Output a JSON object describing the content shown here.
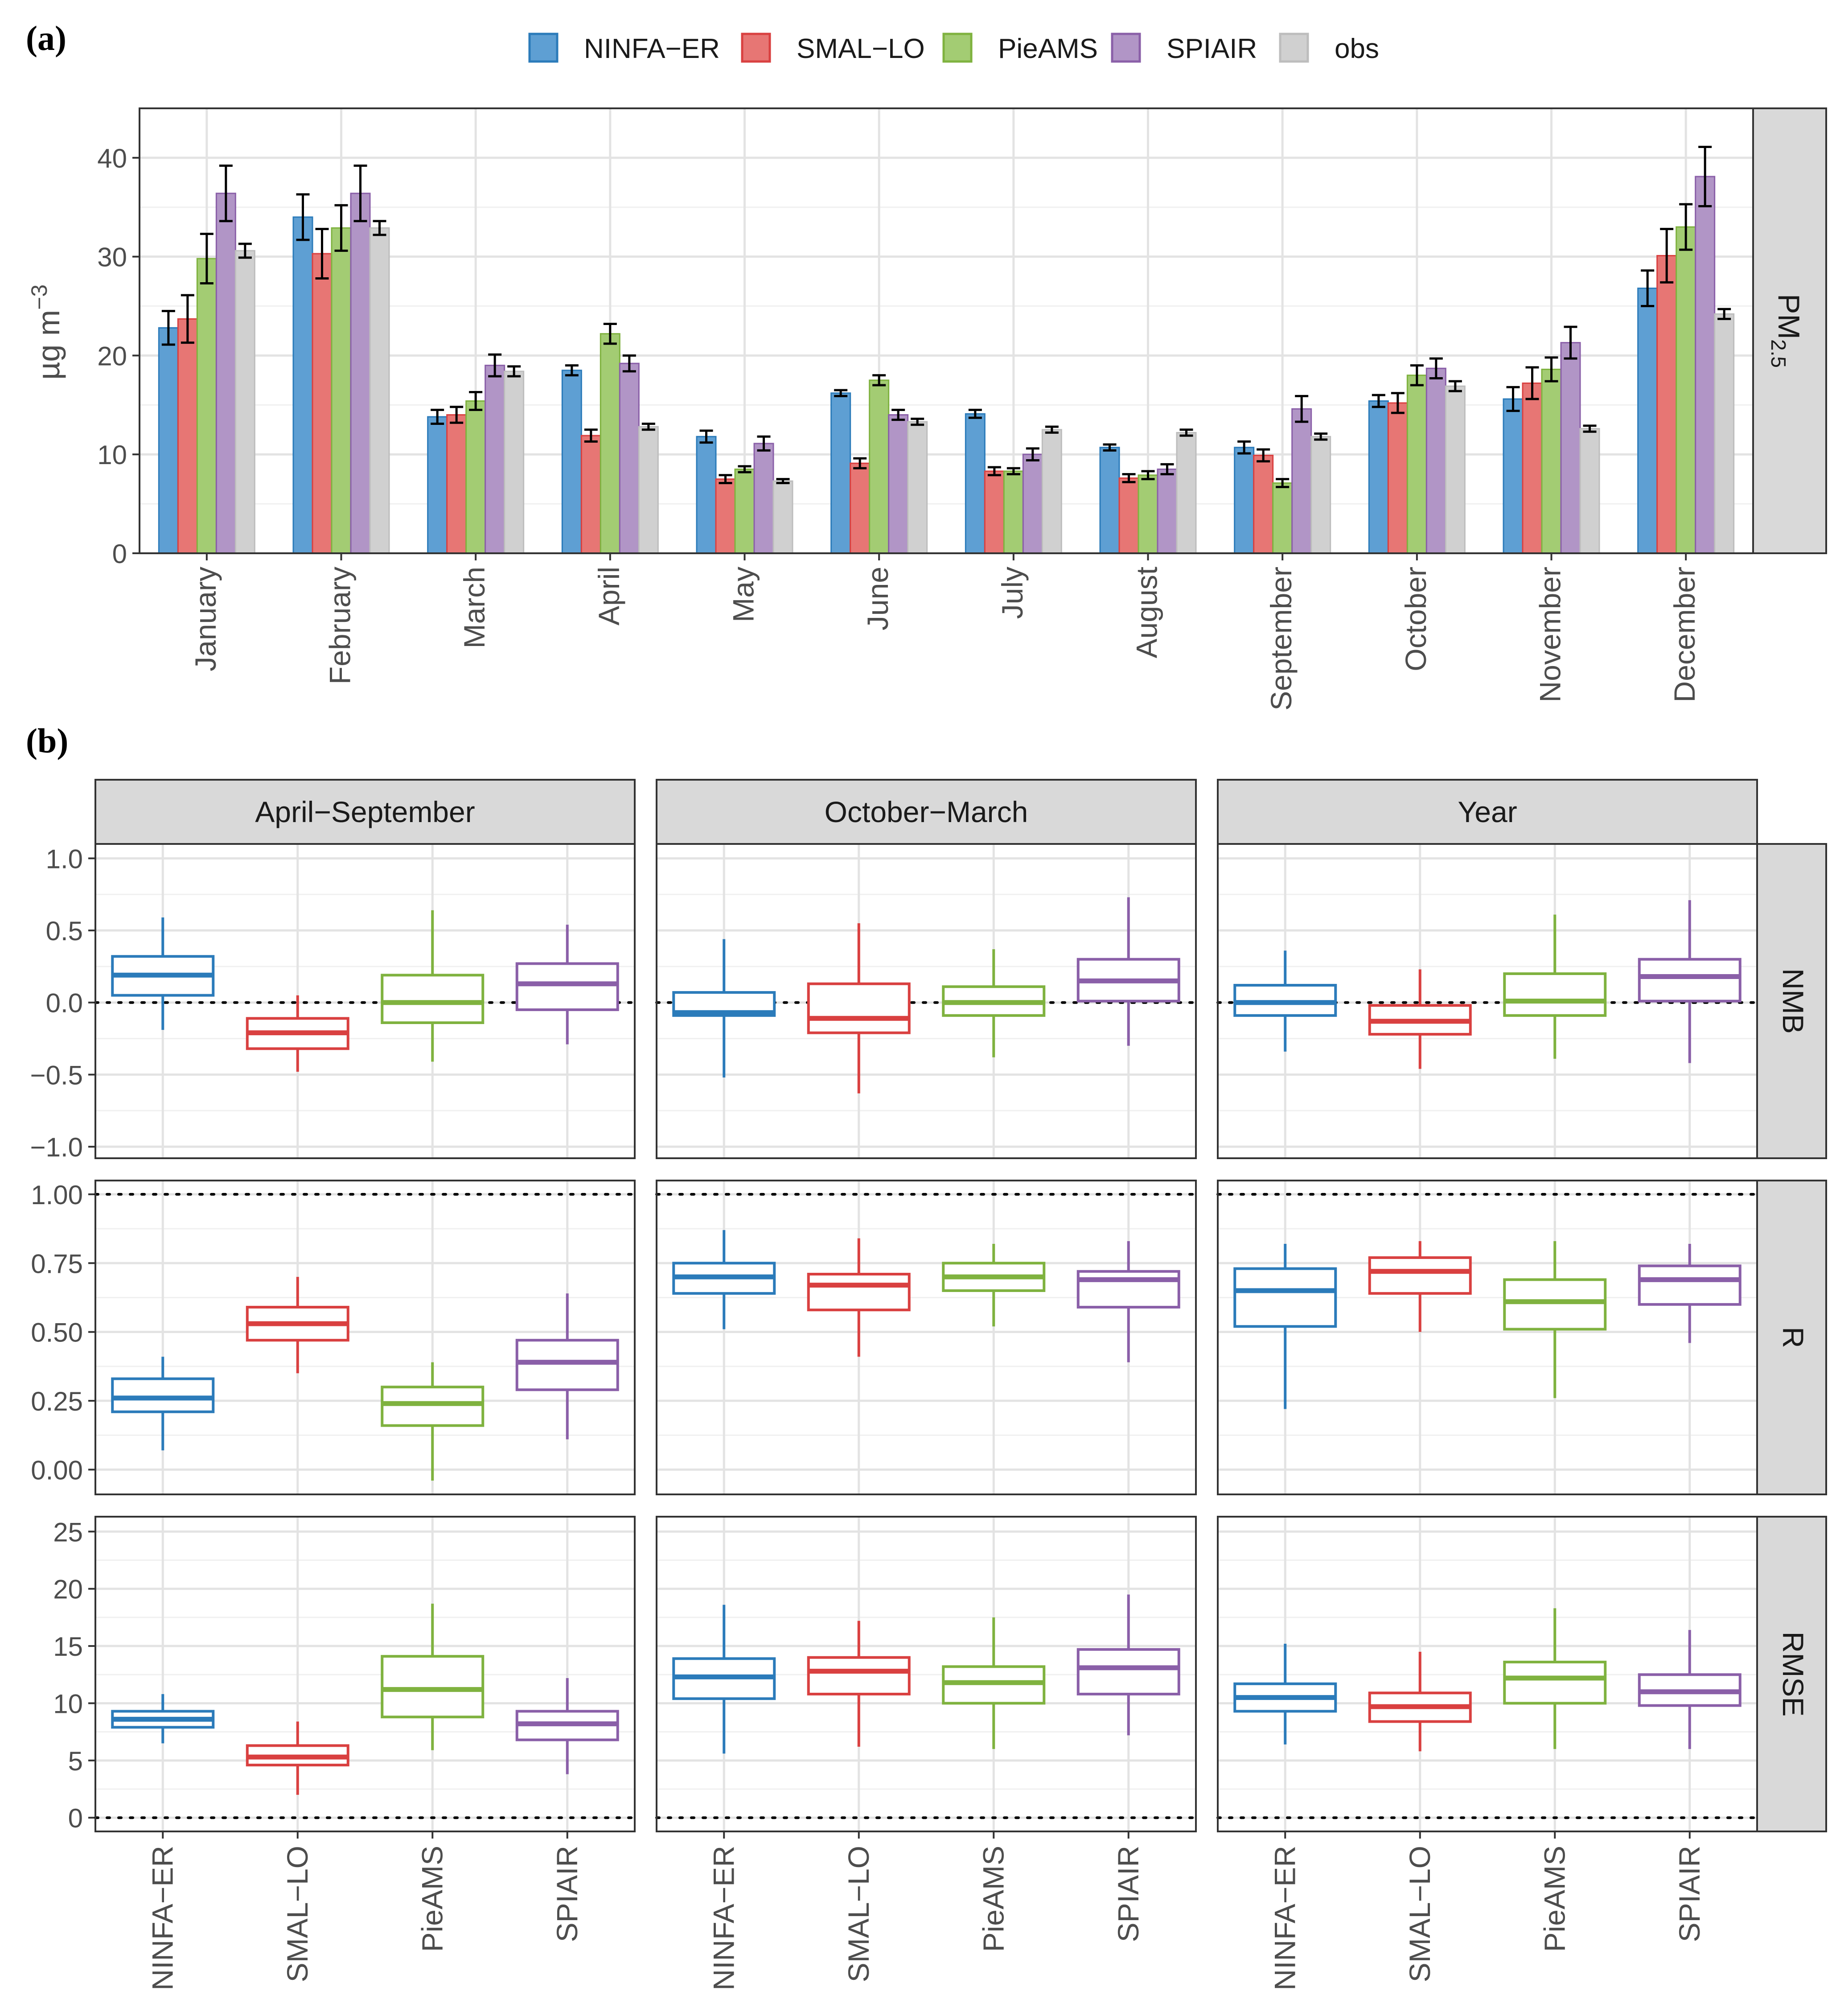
{
  "chart_data": [
    {
      "panel": "(a)",
      "type": "bar",
      "facet_label": "PM",
      "facet_label_sub": "2.5",
      "ylabel_main": "µg m",
      "ylabel_sup": "−3",
      "ylim": [
        0,
        45
      ],
      "yticks": [
        0,
        10,
        20,
        30,
        40
      ],
      "categories": [
        "January",
        "February",
        "March",
        "April",
        "May",
        "June",
        "July",
        "August",
        "September",
        "October",
        "November",
        "December"
      ],
      "series": [
        {
          "name": "NINFA−ER",
          "color": "#2b7bba",
          "fill": "#5e9fd3",
          "values": [
            22.8,
            34.0,
            13.8,
            18.5,
            11.8,
            16.2,
            14.1,
            10.7,
            10.7,
            15.4,
            15.6,
            26.8
          ],
          "errors": [
            1.7,
            2.3,
            0.7,
            0.5,
            0.6,
            0.3,
            0.4,
            0.3,
            0.6,
            0.6,
            1.2,
            1.8
          ]
        },
        {
          "name": "SMAL−LO",
          "color": "#d94040",
          "fill": "#e77674",
          "values": [
            23.7,
            30.3,
            14.0,
            11.9,
            7.5,
            9.1,
            8.3,
            7.6,
            9.9,
            15.2,
            17.2,
            30.1
          ],
          "errors": [
            2.4,
            2.5,
            0.8,
            0.6,
            0.4,
            0.5,
            0.4,
            0.4,
            0.6,
            1.0,
            1.6,
            2.7
          ]
        },
        {
          "name": "PieAMS",
          "color": "#7fb23f",
          "fill": "#a3cc73",
          "values": [
            29.8,
            32.9,
            15.4,
            22.2,
            8.5,
            17.5,
            8.3,
            7.9,
            7.1,
            18.0,
            18.6,
            33.0
          ],
          "errors": [
            2.5,
            2.3,
            0.9,
            1.0,
            0.3,
            0.5,
            0.3,
            0.4,
            0.4,
            1.0,
            1.2,
            2.3
          ]
        },
        {
          "name": "SPIAIR",
          "color": "#8a5fa8",
          "fill": "#b195c6",
          "values": [
            36.4,
            36.4,
            19.0,
            19.2,
            11.1,
            14.0,
            10.0,
            8.5,
            14.6,
            18.7,
            21.3,
            38.1
          ],
          "errors": [
            2.8,
            2.8,
            1.1,
            0.8,
            0.7,
            0.5,
            0.6,
            0.5,
            1.3,
            1.0,
            1.6,
            3.0
          ]
        },
        {
          "name": "obs",
          "color": "#bdbdbd",
          "fill": "#d0d0d0",
          "values": [
            30.6,
            32.9,
            18.4,
            12.8,
            7.3,
            13.3,
            12.5,
            12.2,
            11.8,
            16.9,
            12.6,
            24.2
          ],
          "errors": [
            0.7,
            0.7,
            0.5,
            0.3,
            0.2,
            0.3,
            0.3,
            0.3,
            0.3,
            0.5,
            0.3,
            0.5
          ]
        }
      ]
    },
    {
      "panel": "(b)",
      "type": "boxplot",
      "columns": [
        "April−September",
        "October−March",
        "Year"
      ],
      "rows": [
        "NMB",
        "R",
        "RMSE"
      ],
      "models": [
        "NINFA−ER",
        "SMAL−LO",
        "PieAMS",
        "SPIAIR"
      ],
      "model_colors": [
        "#2b7bba",
        "#d94040",
        "#7fb23f",
        "#8a5fa8"
      ],
      "row_axes": {
        "NMB": {
          "ylim": [
            -1.08,
            1.1
          ],
          "yticks": [
            -1.0,
            -0.5,
            0.0,
            0.5,
            1.0
          ],
          "ytick_labels": [
            "−1.0",
            "−0.5",
            "0.0",
            "0.5",
            "1.0"
          ],
          "ref_line": 0.0
        },
        "R": {
          "ylim": [
            -0.09,
            1.05
          ],
          "yticks": [
            0.0,
            0.25,
            0.5,
            0.75,
            1.0
          ],
          "ytick_labels": [
            "0.00",
            "0.25",
            "0.50",
            "0.75",
            "1.00"
          ],
          "ref_line": 1.0
        },
        "RMSE": {
          "ylim": [
            -1.2,
            26.3
          ],
          "yticks": [
            0,
            5,
            10,
            15,
            20,
            25
          ],
          "ytick_labels": [
            "0",
            "5",
            "10",
            "15",
            "20",
            "25"
          ],
          "ref_line": 0
        }
      },
      "boxes": {
        "NMB": [
          [
            [
              -0.19,
              0.05,
              0.19,
              0.32,
              0.59
            ],
            [
              -0.48,
              -0.32,
              -0.21,
              -0.11,
              0.05
            ],
            [
              -0.41,
              -0.14,
              0.0,
              0.19,
              0.64
            ],
            [
              -0.29,
              -0.05,
              0.13,
              0.27,
              0.54
            ]
          ],
          [
            [
              -0.52,
              -0.09,
              -0.07,
              0.07,
              0.44
            ],
            [
              -0.63,
              -0.21,
              -0.11,
              0.13,
              0.55
            ],
            [
              -0.38,
              -0.09,
              0.0,
              0.11,
              0.37
            ],
            [
              -0.3,
              0.01,
              0.15,
              0.3,
              0.73
            ]
          ],
          [
            [
              -0.34,
              -0.09,
              0.0,
              0.12,
              0.36
            ],
            [
              -0.46,
              -0.22,
              -0.13,
              -0.02,
              0.23
            ],
            [
              -0.39,
              -0.09,
              0.01,
              0.2,
              0.61
            ],
            [
              -0.42,
              0.01,
              0.18,
              0.3,
              0.71
            ]
          ]
        ],
        "R": [
          [
            [
              0.07,
              0.21,
              0.26,
              0.33,
              0.41
            ],
            [
              0.35,
              0.47,
              0.53,
              0.59,
              0.7
            ],
            [
              -0.04,
              0.16,
              0.24,
              0.3,
              0.39
            ],
            [
              0.11,
              0.29,
              0.39,
              0.47,
              0.64
            ]
          ],
          [
            [
              0.51,
              0.64,
              0.7,
              0.75,
              0.87
            ],
            [
              0.41,
              0.58,
              0.67,
              0.71,
              0.84
            ],
            [
              0.52,
              0.65,
              0.7,
              0.75,
              0.82
            ],
            [
              0.39,
              0.59,
              0.69,
              0.72,
              0.83
            ]
          ],
          [
            [
              0.22,
              0.52,
              0.65,
              0.73,
              0.82
            ],
            [
              0.5,
              0.64,
              0.72,
              0.77,
              0.83
            ],
            [
              0.26,
              0.51,
              0.61,
              0.69,
              0.83
            ],
            [
              0.46,
              0.6,
              0.69,
              0.74,
              0.82
            ]
          ]
        ],
        "RMSE": [
          [
            [
              6.5,
              7.9,
              8.6,
              9.3,
              10.8
            ],
            [
              2.0,
              4.6,
              5.3,
              6.3,
              8.4
            ],
            [
              5.9,
              8.8,
              11.2,
              14.1,
              18.7
            ],
            [
              3.8,
              6.8,
              8.2,
              9.3,
              12.2
            ]
          ],
          [
            [
              5.6,
              10.4,
              12.3,
              13.9,
              18.6
            ],
            [
              6.2,
              10.8,
              12.8,
              14.0,
              17.2
            ],
            [
              6.0,
              10.0,
              11.8,
              13.2,
              17.5
            ],
            [
              7.2,
              10.8,
              13.1,
              14.7,
              19.5
            ]
          ],
          [
            [
              6.4,
              9.3,
              10.5,
              11.7,
              15.2
            ],
            [
              5.8,
              8.4,
              9.7,
              10.9,
              14.5
            ],
            [
              6.0,
              10.0,
              12.2,
              13.6,
              18.3
            ],
            [
              6.0,
              9.8,
              11.0,
              12.5,
              16.4
            ]
          ]
        ]
      }
    }
  ]
}
